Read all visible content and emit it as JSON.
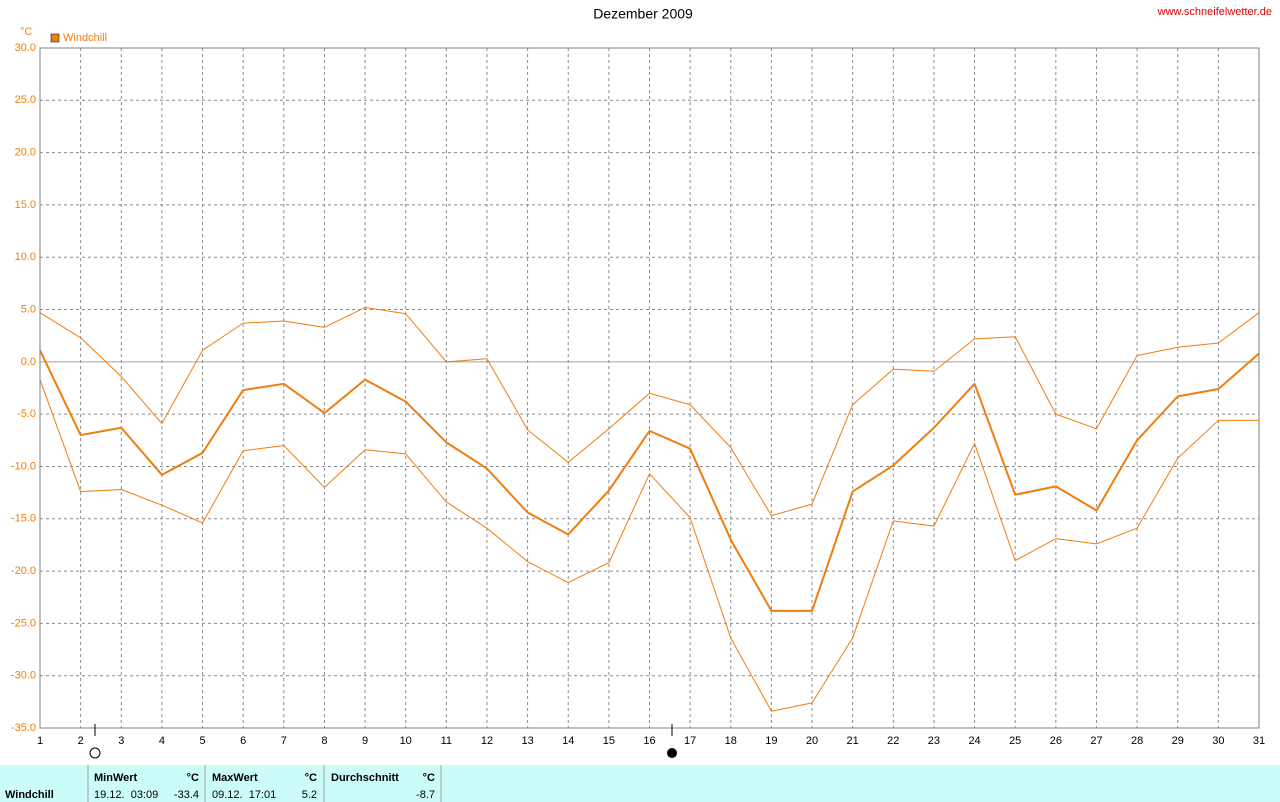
{
  "chart_data": {
    "type": "line",
    "title": "Dezember 2009",
    "source": "www.schneifelwetter.de",
    "ylabel": "°C",
    "x": [
      1,
      2,
      3,
      4,
      5,
      6,
      7,
      8,
      9,
      10,
      11,
      12,
      13,
      14,
      15,
      16,
      17,
      18,
      19,
      20,
      21,
      22,
      23,
      24,
      25,
      26,
      27,
      28,
      29,
      30,
      31
    ],
    "xlim": [
      1,
      31
    ],
    "xticks": [
      1,
      2,
      3,
      4,
      5,
      6,
      7,
      8,
      9,
      10,
      11,
      12,
      13,
      14,
      15,
      16,
      17,
      18,
      19,
      20,
      21,
      22,
      23,
      24,
      25,
      26,
      27,
      28,
      29,
      30,
      31
    ],
    "ylim": [
      -35,
      30
    ],
    "yticks": [
      {
        "value": 30,
        "label": "30.0"
      },
      {
        "value": 25,
        "label": "25.0"
      },
      {
        "value": 20,
        "label": "20.0"
      },
      {
        "value": 15,
        "label": "15.0"
      },
      {
        "value": 10,
        "label": "10.0"
      },
      {
        "value": 5,
        "label": "5.0"
      },
      {
        "value": 0,
        "label": "0.0"
      },
      {
        "value": -5,
        "label": "-5.0"
      },
      {
        "value": -10,
        "label": "-10.0"
      },
      {
        "value": -15,
        "label": "-15.0"
      },
      {
        "value": -20,
        "label": "-20.0"
      },
      {
        "value": -25,
        "label": "-25.0"
      },
      {
        "value": -30,
        "label": "-30.0"
      },
      {
        "value": -35,
        "label": "-35.0"
      }
    ],
    "grid": true,
    "legend": "top-left",
    "series": [
      {
        "name": "Windchill",
        "color": "#f07d0f",
        "line_width": 2,
        "values": [
          1.1,
          -7.0,
          -6.3,
          -10.8,
          -8.7,
          -2.7,
          -2.1,
          -4.9,
          -1.7,
          -3.8,
          -7.7,
          -10.2,
          -14.4,
          -16.5,
          -12.3,
          -6.6,
          -8.3,
          -17.0,
          -23.8,
          -23.8,
          -12.4,
          -9.9,
          -6.3,
          -2.1,
          -12.7,
          -11.9,
          -14.2,
          -7.5,
          -3.3,
          -2.6,
          0.8
        ]
      },
      {
        "color": "#f07d0f",
        "line_width": 1,
        "values": [
          4.7,
          2.3,
          -1.4,
          -5.9,
          1.1,
          3.7,
          3.9,
          3.3,
          5.2,
          4.6,
          0.0,
          0.3,
          -6.5,
          -9.6,
          -6.4,
          -3.0,
          -4.1,
          -8.2,
          -14.7,
          -13.6,
          -4.1,
          -0.7,
          -0.9,
          2.2,
          2.4,
          -5.0,
          -6.4,
          0.6,
          1.4,
          1.8,
          4.7
        ]
      },
      {
        "color": "#f07d0f",
        "line_width": 1,
        "values": [
          -1.7,
          -12.4,
          -12.2,
          -13.7,
          -15.4,
          -8.5,
          -8.0,
          -12.0,
          -8.4,
          -8.8,
          -13.4,
          -15.9,
          -19.1,
          -21.1,
          -19.2,
          -10.7,
          -14.9,
          -26.4,
          -33.4,
          -32.6,
          -26.4,
          -15.2,
          -15.7,
          -7.8,
          -19.0,
          -16.9,
          -17.4,
          -15.9,
          -9.2,
          -5.6,
          -5.6
        ]
      }
    ]
  },
  "summary": {
    "label": "Windchill",
    "columns": [
      {
        "header": "MinWert",
        "unit": "°C",
        "time": "19.12.  03:09",
        "value": -33.4
      },
      {
        "header": "MaxWert",
        "unit": "°C",
        "time": "09.12.  17:01",
        "value": 5.2
      },
      {
        "header": "Durchschnitt",
        "unit": "°C",
        "value": -8.7
      }
    ]
  }
}
